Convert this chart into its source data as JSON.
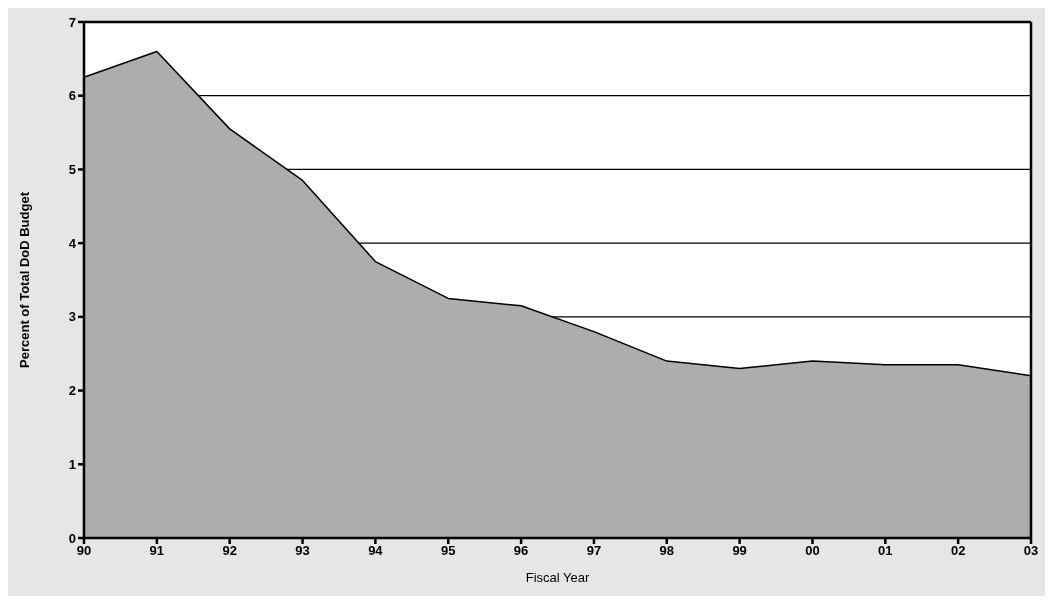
{
  "chart_data": {
    "type": "area",
    "xlabel": "Fiscal Year",
    "ylabel": "Percent of Total DoD Budget",
    "categories": [
      "90",
      "91",
      "92",
      "93",
      "94",
      "95",
      "96",
      "97",
      "98",
      "99",
      "00",
      "01",
      "02",
      "03"
    ],
    "series": [
      {
        "color": "#adadad",
        "values": [
          6.25,
          6.6,
          5.55,
          4.85,
          3.75,
          3.25,
          3.15,
          2.8,
          2.4,
          2.3,
          2.4,
          2.35,
          2.35,
          2.2
        ]
      }
    ],
    "ylim": [
      0,
      7
    ],
    "yticks": [
      0,
      1,
      2,
      3,
      4,
      5,
      6,
      7
    ],
    "grid": "y"
  }
}
